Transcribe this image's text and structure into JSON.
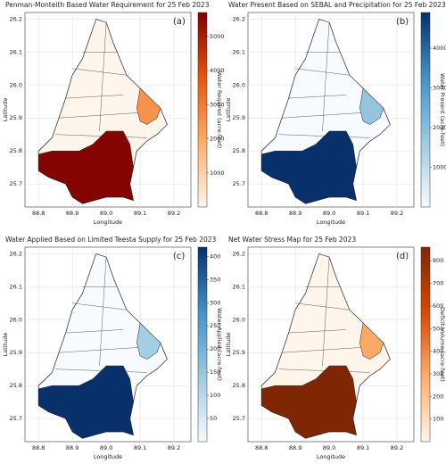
{
  "chart_data": [
    {
      "type": "map",
      "title": "Penman-Monteith Based Water Requirement for 25 Feb 2023",
      "panel_label": "(a)",
      "xlabel": "Longitude",
      "ylabel": "Latitude",
      "colorbar_label": "Water Required (acre-feet)",
      "xlim": [
        88.76,
        89.25
      ],
      "ylim": [
        25.63,
        26.22
      ],
      "xticks": [
        88.8,
        88.9,
        {
          "value": 89,
          "label": "89.0"
        },
        89.1,
        89.2
      ],
      "yticks": [
        25.7,
        25.8,
        25.9,
        {
          "value": 26,
          "label": "26.0"
        },
        26.1,
        26.2
      ],
      "clim": [
        0,
        5700
      ],
      "cticks": [
        1000,
        2000,
        3000,
        4000,
        5000
      ],
      "colormap": [
        "#fff5eb",
        "#fdae6b",
        "#e6550d",
        "#7f0000"
      ],
      "values": [
        5600,
        2500
      ]
    },
    {
      "type": "map",
      "title": "Water Present Based on SEBAL and Precipitation for 25 Feb 2023",
      "panel_label": "(b)",
      "xlabel": "Longitude",
      "ylabel": "Latitude",
      "colorbar_label": "Water Present (acre-feet)",
      "xlim": [
        88.76,
        89.25
      ],
      "ylim": [
        25.63,
        26.22
      ],
      "xticks": [
        88.8,
        88.9,
        {
          "value": 89,
          "label": "89.0"
        },
        89.1,
        89.2
      ],
      "yticks": [
        25.7,
        25.8,
        25.9,
        {
          "value": 26,
          "label": "26.0"
        },
        26.1,
        26.2
      ],
      "clim": [
        0,
        4900
      ],
      "cticks": [
        1000,
        2000,
        3000,
        4000
      ],
      "colormap": [
        "#f7fbff",
        "#9ecae1",
        "#4292c6",
        "#08306b"
      ],
      "values": [
        4900,
        1800
      ]
    },
    {
      "type": "map",
      "title": "Water Applied Based on Limited Teesta Supply for 25 Feb 2023",
      "panel_label": "(c)",
      "xlabel": "Longitude",
      "ylabel": "Latitude",
      "colorbar_label": "Water Applied (acre-feet)",
      "xlim": [
        88.76,
        89.25
      ],
      "ylim": [
        25.63,
        26.22
      ],
      "xticks": [
        88.8,
        88.9,
        {
          "value": 89,
          "label": "89.0"
        },
        89.1,
        89.2
      ],
      "yticks": [
        25.7,
        25.8,
        25.9,
        {
          "value": 26,
          "label": "26.0"
        },
        26.1,
        26.2
      ],
      "clim": [
        0,
        420
      ],
      "cticks": [
        50,
        100,
        150,
        200,
        250,
        300,
        350,
        400
      ],
      "colormap": [
        "#f7fbff",
        "#9ecae1",
        "#4292c6",
        "#08306b"
      ],
      "values": [
        420,
        130
      ]
    },
    {
      "type": "map",
      "title": "Net Water Stress Map for 25 Feb 2023",
      "panel_label": "(d)",
      "xlabel": "Longitude",
      "ylabel": "Latitude",
      "colorbar_label": "Deficit Volume (acre-feet)",
      "xlim": [
        88.76,
        89.25
      ],
      "ylim": [
        25.63,
        26.22
      ],
      "xticks": [
        88.8,
        88.9,
        {
          "value": 89,
          "label": "89.0"
        },
        89.1,
        89.2
      ],
      "yticks": [
        25.7,
        25.8,
        25.9,
        {
          "value": 26,
          "label": "26.0"
        },
        26.1,
        26.2
      ],
      "clim": [
        0,
        860
      ],
      "cticks": [
        100,
        200,
        300,
        400,
        500,
        600,
        700,
        800
      ],
      "colormap": [
        "#fff5eb",
        "#fdae6b",
        "#d94801",
        "#7f2704"
      ],
      "values": [
        860,
        300
      ]
    }
  ]
}
